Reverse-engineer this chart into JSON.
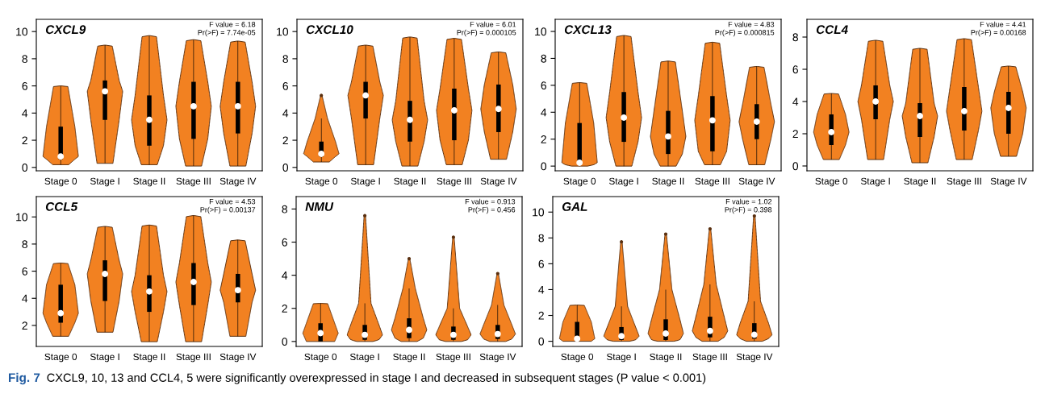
{
  "chart_data": [
    {
      "type": "box",
      "title": "CXCL9",
      "categories": [
        "Stage 0",
        "Stage I",
        "Stage II",
        "Stage III",
        "Stage IV"
      ],
      "color": "#000000",
      "ylim": [
        -0.25,
        10.9
      ],
      "yticks": [
        0,
        2,
        4,
        6,
        8,
        10
      ],
      "annotations": [
        "F value = 6.18",
        "Pr(>F) = 7.74e-05",
        "Fig. 7",
        "CXCL9, 10, 13 and CCL4, 5 were significantly overexpressed in stage I and decreased in subsequent stages (P value < 0.001)"
      ],
      "boxes": [
        {
          "low": 0.2,
          "q1": 0.6,
          "median": 0.8,
          "q3": 3.0,
          "high": 6.0
        },
        {
          "low": 0.3,
          "q1": 3.5,
          "median": 5.6,
          "q3": 6.4,
          "high": 9.0
        },
        {
          "low": 0.2,
          "q1": 1.6,
          "median": 3.5,
          "q3": 5.3,
          "high": 9.7
        },
        {
          "low": 0.1,
          "q1": 2.1,
          "median": 4.5,
          "q3": 6.3,
          "high": 9.4
        },
        {
          "low": 0.1,
          "q1": 2.5,
          "median": 4.5,
          "q3": 6.3,
          "high": 9.3
        }
      ]
    },
    {
      "type": "box",
      "title": "CXCL10",
      "categories": [
        "Stage 0",
        "Stage I",
        "Stage II",
        "Stage III",
        "Stage IV"
      ],
      "color": "#000000",
      "ylim": [
        -0.25,
        10.9
      ],
      "yticks": [
        0,
        2,
        4,
        6,
        8,
        10
      ],
      "annotations": [
        "F value = 6.01",
        "Pr(>F) = 0.000105"
      ],
      "boxes": [
        {
          "low": 0.4,
          "q1": 0.8,
          "median": 1.0,
          "q3": 1.9,
          "high": 3.6,
          "outliers": [
            5.3
          ]
        },
        {
          "low": 0.2,
          "q1": 3.6,
          "median": 5.3,
          "q3": 6.3,
          "high": 9.0
        },
        {
          "low": 0.1,
          "q1": 1.9,
          "median": 3.5,
          "q3": 4.9,
          "high": 9.6
        },
        {
          "low": 0.2,
          "q1": 2.0,
          "median": 4.2,
          "q3": 5.8,
          "high": 9.5
        },
        {
          "low": 0.6,
          "q1": 2.6,
          "median": 4.3,
          "q3": 6.1,
          "high": 8.5
        }
      ]
    },
    {
      "type": "box",
      "title": "CXCL13",
      "categories": [
        "Stage 0",
        "Stage I",
        "Stage II",
        "Stage III",
        "Stage IV"
      ],
      "color": "#000000",
      "ylim": [
        -0.35,
        10.9
      ],
      "yticks": [
        0,
        2,
        4,
        6,
        8,
        10
      ],
      "annotations": [
        "F value = 4.83",
        "Pr(>F) = 0.000815"
      ],
      "boxes": [
        {
          "low": 0.0,
          "q1": 0.1,
          "median": 0.25,
          "q3": 3.2,
          "high": 6.2
        },
        {
          "low": 0.0,
          "q1": 1.8,
          "median": 3.6,
          "q3": 5.5,
          "high": 9.7
        },
        {
          "low": 0.0,
          "q1": 0.9,
          "median": 2.2,
          "q3": 4.1,
          "high": 7.8
        },
        {
          "low": 0.1,
          "q1": 1.1,
          "median": 3.4,
          "q3": 5.2,
          "high": 9.2
        },
        {
          "low": 0.1,
          "q1": 2.0,
          "median": 3.3,
          "q3": 4.6,
          "high": 7.4
        }
      ]
    },
    {
      "type": "box",
      "title": "CCL4",
      "categories": [
        "Stage 0",
        "Stage I",
        "Stage II",
        "Stage III",
        "Stage IV"
      ],
      "color": "#000000",
      "ylim": [
        -0.3,
        9.1
      ],
      "yticks": [
        0,
        2,
        4,
        6,
        8
      ],
      "annotations": [
        "F value = 4.41",
        "Pr(>F) = 0.00168"
      ],
      "boxes": [
        {
          "low": 0.4,
          "q1": 1.3,
          "median": 2.1,
          "q3": 3.2,
          "high": 4.5
        },
        {
          "low": 0.4,
          "q1": 2.9,
          "median": 4.0,
          "q3": 5.0,
          "high": 7.8
        },
        {
          "low": 0.2,
          "q1": 1.8,
          "median": 3.1,
          "q3": 3.9,
          "high": 7.3
        },
        {
          "low": 0.4,
          "q1": 2.2,
          "median": 3.4,
          "q3": 4.9,
          "high": 7.9
        },
        {
          "low": 0.6,
          "q1": 2.0,
          "median": 3.6,
          "q3": 4.6,
          "high": 6.2
        }
      ]
    },
    {
      "type": "box",
      "title": "CCL5",
      "categories": [
        "Stage 0",
        "Stage I",
        "Stage II",
        "Stage III",
        "Stage IV"
      ],
      "color": "#000000",
      "ylim": [
        0.45,
        11.5
      ],
      "yticks": [
        2,
        4,
        6,
        8,
        10
      ],
      "annotations": [
        "F value = 4.53",
        "Pr(>F) = 0.00137"
      ],
      "boxes": [
        {
          "low": 1.2,
          "q1": 2.2,
          "median": 2.9,
          "q3": 5.0,
          "high": 6.6
        },
        {
          "low": 1.5,
          "q1": 3.8,
          "median": 5.8,
          "q3": 6.8,
          "high": 9.3
        },
        {
          "low": 0.8,
          "q1": 3.0,
          "median": 4.5,
          "q3": 5.7,
          "high": 9.4
        },
        {
          "low": 0.8,
          "q1": 3.5,
          "median": 5.2,
          "q3": 6.6,
          "high": 10.1
        },
        {
          "low": 1.2,
          "q1": 3.7,
          "median": 4.6,
          "q3": 5.8,
          "high": 8.3
        }
      ]
    },
    {
      "type": "box",
      "title": "NMU",
      "categories": [
        "Stage 0",
        "Stage I",
        "Stage II",
        "Stage III",
        "Stage IV"
      ],
      "color": "#000000",
      "ylim": [
        -0.3,
        8.75
      ],
      "yticks": [
        0,
        2,
        4,
        6,
        8
      ],
      "annotations": [
        "F value = 0.913",
        "Pr(>F) = 0.456"
      ],
      "boxes": [
        {
          "low": 0.0,
          "q1": 0.0,
          "median": 0.5,
          "q3": 1.1,
          "high": 2.3
        },
        {
          "low": 0.0,
          "q1": 0.1,
          "median": 0.4,
          "q3": 1.0,
          "high": 2.3,
          "outliers": [
            7.6
          ]
        },
        {
          "low": 0.0,
          "q1": 0.2,
          "median": 0.7,
          "q3": 1.4,
          "high": 3.2,
          "outliers": [
            5.0
          ]
        },
        {
          "low": 0.0,
          "q1": 0.1,
          "median": 0.4,
          "q3": 0.9,
          "high": 2.0,
          "outliers": [
            6.3
          ]
        },
        {
          "low": 0.0,
          "q1": 0.15,
          "median": 0.45,
          "q3": 1.0,
          "high": 2.2,
          "outliers": [
            4.1
          ]
        }
      ]
    },
    {
      "type": "box",
      "title": "GAL",
      "categories": [
        "Stage 0",
        "Stage I",
        "Stage II",
        "Stage III",
        "Stage IV"
      ],
      "color": "#000000",
      "ylim": [
        -0.4,
        11.2
      ],
      "yticks": [
        0,
        2,
        4,
        6,
        8,
        10
      ],
      "annotations": [
        "F value = 1.02",
        "Pr(>F) = 0.398"
      ],
      "boxes": [
        {
          "low": 0.0,
          "q1": 0.0,
          "median": 0.2,
          "q3": 1.5,
          "high": 2.8
        },
        {
          "low": 0.0,
          "q1": 0.1,
          "median": 0.4,
          "q3": 1.1,
          "high": 2.7,
          "outliers": [
            7.7
          ]
        },
        {
          "low": 0.0,
          "q1": 0.1,
          "median": 0.6,
          "q3": 1.7,
          "high": 4.0,
          "outliers": [
            8.3
          ]
        },
        {
          "low": 0.0,
          "q1": 0.3,
          "median": 0.8,
          "q3": 1.9,
          "high": 4.4,
          "outliers": [
            8.7
          ]
        },
        {
          "low": 0.0,
          "q1": 0.2,
          "median": 0.5,
          "q3": 1.4,
          "high": 3.1,
          "outliers": [
            9.7
          ]
        }
      ]
    }
  ]
}
